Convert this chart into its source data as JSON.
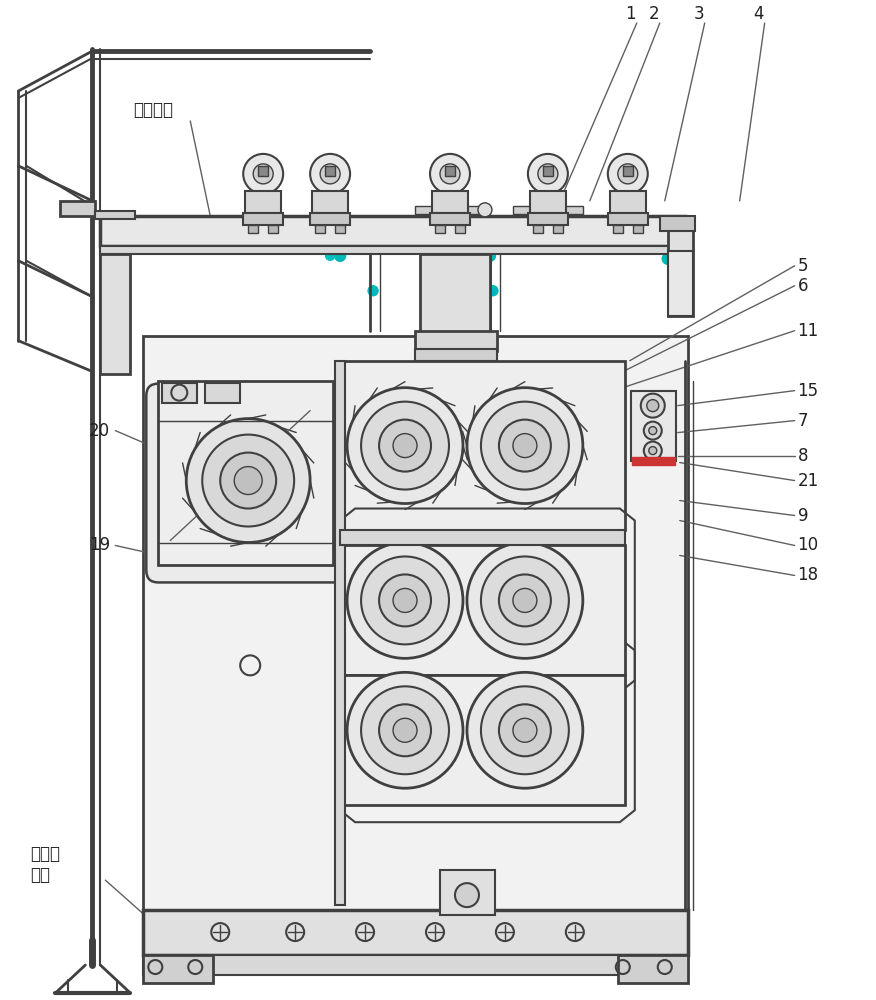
{
  "bg_color": "#ffffff",
  "lc": "#606060",
  "dc": "#404040",
  "mc": "#909090",
  "fig_width": 8.76,
  "fig_height": 10.0,
  "labels": {
    "fang_juan": "放卷平台",
    "di_ban": "地板印\n花机",
    "n1": "1",
    "n2": "2",
    "n3": "3",
    "n4": "4",
    "n5": "5",
    "n6": "6",
    "n7": "7",
    "n8": "8",
    "n9": "9",
    "n10": "10",
    "n11": "11",
    "n15": "15",
    "n18": "18",
    "n19": "19",
    "n20": "20",
    "n21": "21"
  }
}
